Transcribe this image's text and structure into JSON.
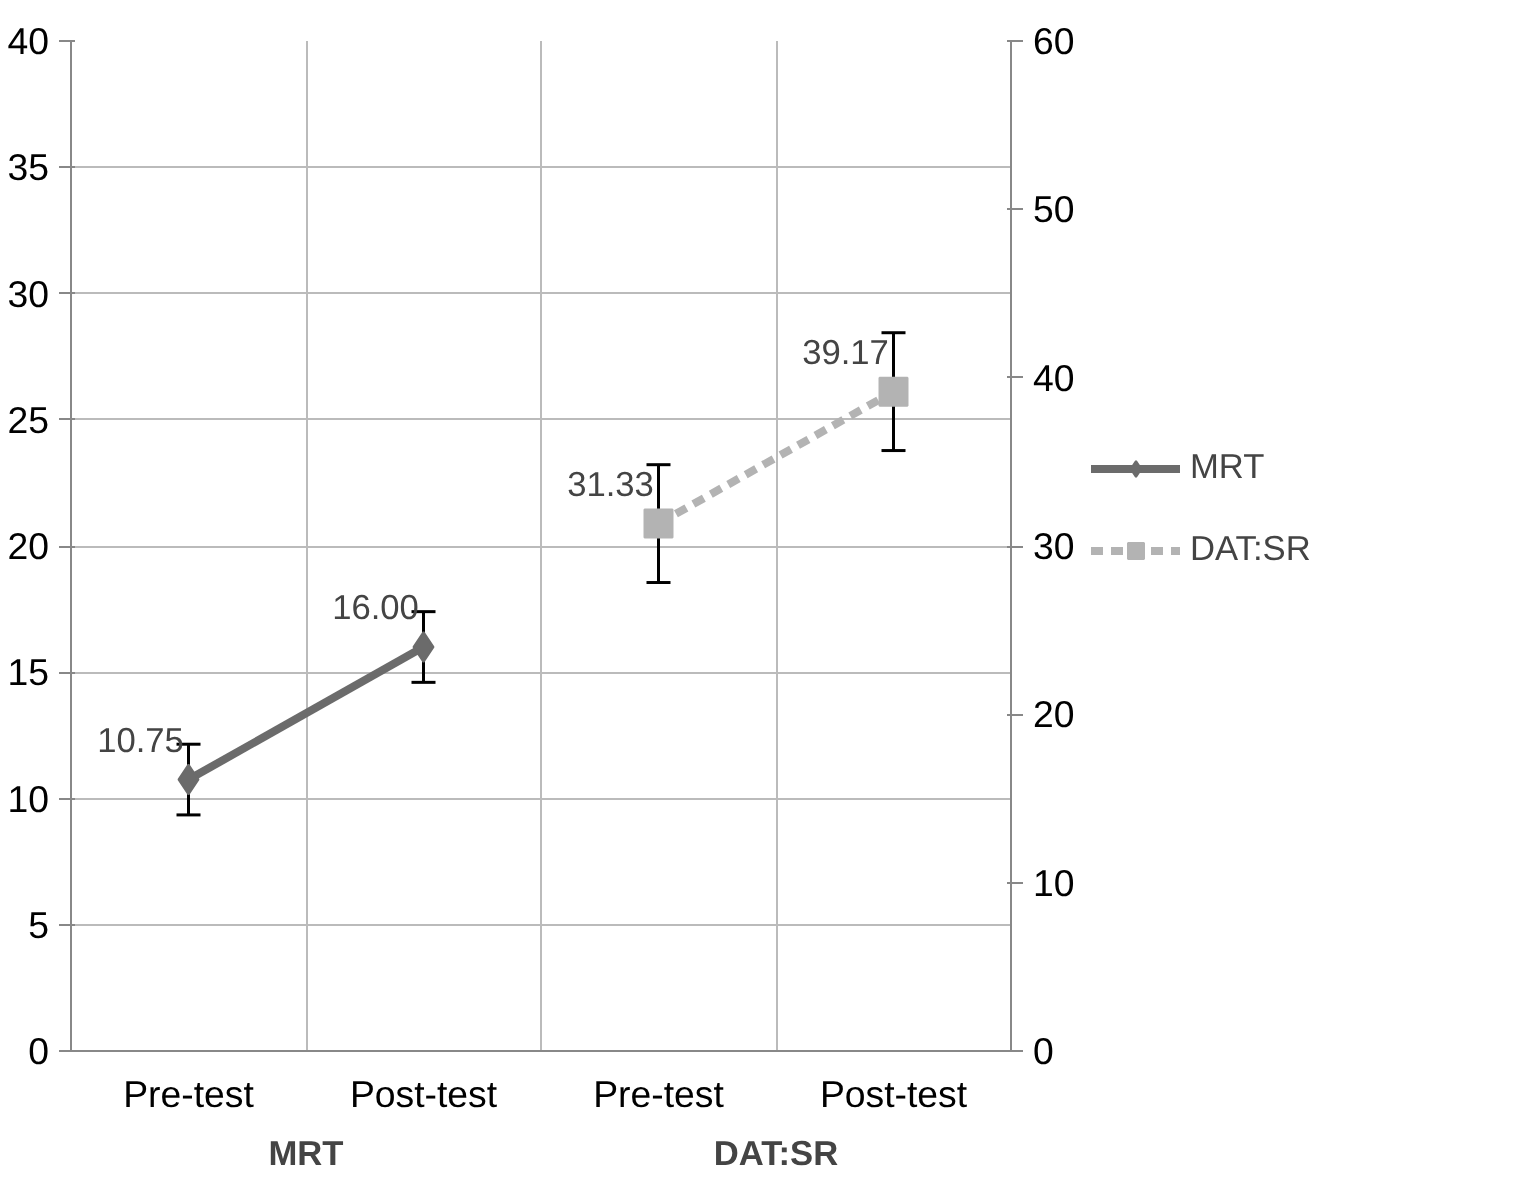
{
  "chart_data": {
    "type": "line",
    "categories": [
      "Pre-test",
      "Post-test",
      "Pre-test",
      "Post-test"
    ],
    "series": [
      {
        "name": "MRT",
        "color": "#6b6b6b",
        "values": [
          10.75,
          16.0,
          null,
          null
        ],
        "errors": [
          1.4,
          1.4,
          null,
          null
        ],
        "value_labels": [
          "10.75",
          "16.00",
          null,
          null
        ],
        "marker": "diamond",
        "line_style": "solid"
      },
      {
        "name": "DAT:SR",
        "color": "#b3b3b3",
        "values": [
          null,
          null,
          31.33,
          39.17
        ],
        "errors": [
          null,
          null,
          3.5,
          3.5
        ],
        "value_labels": [
          null,
          null,
          "31.33",
          "39.17"
        ],
        "marker": "square",
        "line_style": "dashed",
        "axis": "y2"
      }
    ],
    "annotations": [
      "MRT",
      "DAT:SR"
    ],
    "ylim": [
      0,
      40
    ],
    "yticks": [
      0,
      5,
      10,
      15,
      20,
      25,
      30,
      35,
      40
    ],
    "y2lim": [
      0,
      60
    ],
    "y2ticks": [
      0,
      10,
      20,
      30,
      40,
      50,
      60
    ],
    "grid": true,
    "legend": "right"
  }
}
